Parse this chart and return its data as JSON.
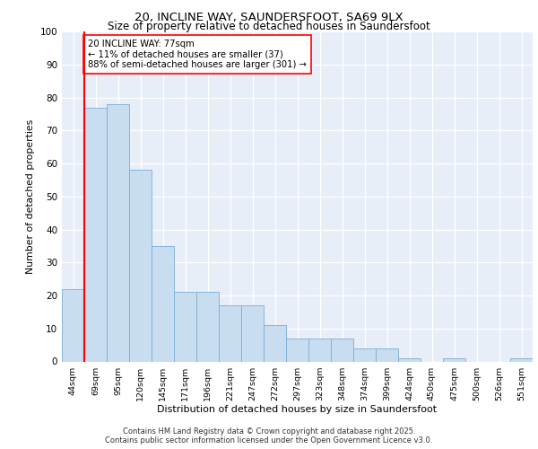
{
  "title1": "20, INCLINE WAY, SAUNDERSFOOT, SA69 9LX",
  "title2": "Size of property relative to detached houses in Saundersfoot",
  "xlabel": "Distribution of detached houses by size in Saundersfoot",
  "ylabel": "Number of detached properties",
  "categories": [
    "44sqm",
    "69sqm",
    "95sqm",
    "120sqm",
    "145sqm",
    "171sqm",
    "196sqm",
    "221sqm",
    "247sqm",
    "272sqm",
    "297sqm",
    "323sqm",
    "348sqm",
    "374sqm",
    "399sqm",
    "424sqm",
    "450sqm",
    "475sqm",
    "500sqm",
    "526sqm",
    "551sqm"
  ],
  "values": [
    22,
    77,
    78,
    58,
    35,
    21,
    21,
    17,
    17,
    11,
    7,
    7,
    7,
    4,
    4,
    1,
    0,
    1,
    0,
    0,
    1
  ],
  "bar_color": "#c9ddf0",
  "bar_edge_color": "#7aadd4",
  "vline_x": 1,
  "vline_color": "red",
  "annotation_text": "20 INCLINE WAY: 77sqm\n← 11% of detached houses are smaller (37)\n88% of semi-detached houses are larger (301) →",
  "annotation_box_color": "white",
  "annotation_box_edge": "red",
  "ylim": [
    0,
    100
  ],
  "yticks": [
    0,
    10,
    20,
    30,
    40,
    50,
    60,
    70,
    80,
    90,
    100
  ],
  "background_color": "#e8eef8",
  "footer_text": "Contains HM Land Registry data © Crown copyright and database right 2025.\nContains public sector information licensed under the Open Government Licence v3.0."
}
